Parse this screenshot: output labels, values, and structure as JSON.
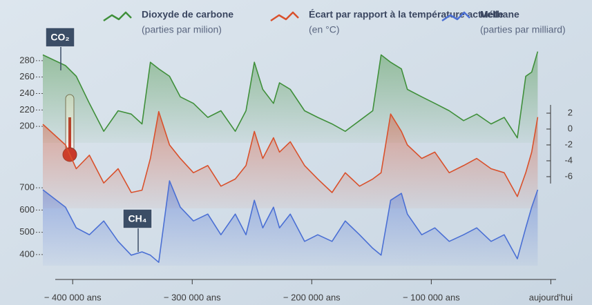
{
  "chart_data": [
    {
      "type": "line",
      "annotation": "CO₂",
      "x": [
        -425000,
        -406000,
        -397000,
        -386000,
        -374000,
        -362000,
        -351000,
        -342000,
        -335000,
        -328000,
        -319000,
        -310000,
        -299000,
        -287000,
        -276000,
        -264000,
        -255000,
        -248000,
        -241000,
        -232000,
        -227000,
        -218000,
        -206000,
        -195000,
        -183000,
        -172000,
        -160000,
        -149000,
        -142000,
        -134000,
        -125000,
        -120000,
        -108000,
        -97000,
        -85000,
        -73000,
        -62000,
        -50000,
        -39000,
        -28000,
        -21000,
        -16000,
        -11000
      ],
      "xlim": [
        -440000,
        20000
      ],
      "ylim": [
        180,
        300
      ],
      "yticks": [
        200,
        220,
        240,
        260,
        280
      ],
      "series": [
        {
          "name": "Dioxyde de carbone",
          "unit": "(parties par milion)",
          "color": "#3f8f3a",
          "values": [
            287,
            274,
            261,
            228,
            194,
            219,
            215,
            203,
            278,
            270,
            261,
            236,
            228,
            211,
            219,
            194,
            219,
            278,
            245,
            228,
            253,
            245,
            219,
            211,
            203,
            194,
            207,
            219,
            287,
            278,
            270,
            245,
            236,
            228,
            219,
            207,
            215,
            203,
            211,
            186,
            261,
            266,
            291
          ]
        }
      ]
    },
    {
      "type": "line",
      "x": [
        -425000,
        -406000,
        -397000,
        -386000,
        -374000,
        -362000,
        -351000,
        -342000,
        -335000,
        -328000,
        -319000,
        -310000,
        -299000,
        -287000,
        -276000,
        -264000,
        -255000,
        -248000,
        -241000,
        -232000,
        -227000,
        -218000,
        -206000,
        -195000,
        -183000,
        -172000,
        -160000,
        -149000,
        -142000,
        -134000,
        -125000,
        -120000,
        -108000,
        -97000,
        -85000,
        -73000,
        -62000,
        -50000,
        -39000,
        -28000,
        -21000,
        -16000,
        -11000
      ],
      "xlim": [
        -440000,
        20000
      ],
      "ylim": [
        -10,
        4
      ],
      "yticks": [
        2,
        0,
        -2,
        -4,
        -6
      ],
      "series": [
        {
          "name": "Écart par rapport à la température actuelle",
          "unit": "(en °C)",
          "color": "#d9502b",
          "values": [
            0.6,
            -2,
            -5,
            -3.3,
            -6.8,
            -5,
            -8,
            -7.7,
            -3.7,
            2.2,
            -2,
            -3.7,
            -5.5,
            -4.6,
            -7.2,
            -6.3,
            -4.6,
            -0.3,
            -3.7,
            -1.1,
            -2.9,
            -1.6,
            -4.6,
            -6.3,
            -8,
            -5.5,
            -7.2,
            -6.3,
            -5.5,
            1.9,
            -0.3,
            -2,
            -3.7,
            -2.9,
            -5.5,
            -4.6,
            -3.7,
            -5,
            -5.5,
            -8.5,
            -5.5,
            -2.9,
            1.5
          ]
        }
      ]
    },
    {
      "type": "line",
      "annotation": "CH₄",
      "x": [
        -425000,
        -406000,
        -397000,
        -386000,
        -374000,
        -362000,
        -351000,
        -342000,
        -335000,
        -328000,
        -319000,
        -310000,
        -299000,
        -287000,
        -276000,
        -264000,
        -255000,
        -248000,
        -241000,
        -232000,
        -227000,
        -218000,
        -206000,
        -195000,
        -183000,
        -172000,
        -160000,
        -149000,
        -142000,
        -134000,
        -125000,
        -120000,
        -108000,
        -97000,
        -85000,
        -73000,
        -62000,
        -50000,
        -39000,
        -28000,
        -21000,
        -16000,
        -11000
      ],
      "xlim": [
        -440000,
        20000
      ],
      "xticks": [
        {
          "value": -400000,
          "label": "− 400 000 ans"
        },
        {
          "value": -300000,
          "label": "− 300 000 ans"
        },
        {
          "value": -200000,
          "label": "− 200 000 ans"
        },
        {
          "value": -100000,
          "label": "− 100 000 ans"
        },
        {
          "value": 0,
          "label": "aujourd'hui"
        }
      ],
      "ylim": [
        350,
        750
      ],
      "yticks": [
        400,
        500,
        600,
        700
      ],
      "series": [
        {
          "name": "Méthane",
          "unit": "(parties par milliard)",
          "color": "#4a6fd4",
          "values": [
            691,
            613,
            520,
            489,
            551,
            459,
            397,
            412,
            397,
            365,
            731,
            613,
            551,
            582,
            489,
            582,
            489,
            644,
            520,
            613,
            520,
            582,
            459,
            489,
            459,
            551,
            489,
            428,
            397,
            644,
            675,
            582,
            489,
            520,
            459,
            489,
            520,
            459,
            489,
            381,
            520,
            613,
            691
          ]
        }
      ]
    }
  ]
}
